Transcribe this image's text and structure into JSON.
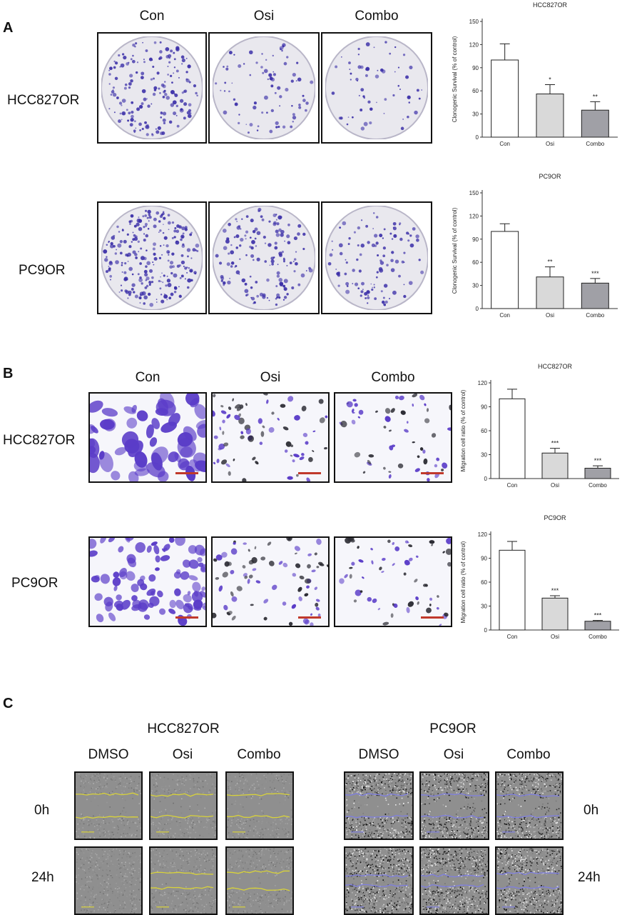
{
  "panels": {
    "A": {
      "letter": "A",
      "columns": [
        "Con",
        "Osi",
        "Combo"
      ],
      "rows": [
        "HCC827OR",
        "PC9OR"
      ]
    },
    "B": {
      "letter": "B",
      "columns": [
        "Con",
        "Osi",
        "Combo"
      ],
      "rows": [
        "HCC827OR",
        "PC9OR"
      ]
    },
    "C": {
      "letter": "C",
      "groups": [
        {
          "title": "HCC827OR",
          "columns": [
            "DMSO",
            "Osi",
            "Combo"
          ],
          "line_color": "#d8d23a"
        },
        {
          "title": "PC9OR",
          "columns": [
            "DMSO",
            "Osi",
            "Combo"
          ],
          "line_color": "#7f7fe0"
        }
      ],
      "time_left": [
        "0h",
        "24h"
      ],
      "time_right": [
        "0h",
        "24h"
      ]
    }
  },
  "colors": {
    "stain": "#3b2fa8",
    "bar_con": "#ffffff",
    "bar_osi": "#d9d9d9",
    "bar_combo": "#a0a0a6"
  },
  "chart_data": [
    {
      "type": "bar",
      "title": "HCC827OR",
      "ylabel": "Clonogenic Survival (% of control)",
      "categories": [
        "Con",
        "Osi",
        "Combo"
      ],
      "values": [
        100,
        56,
        35
      ],
      "errors": [
        21,
        12,
        11
      ],
      "significance": [
        "",
        "*",
        "**"
      ],
      "ylim": [
        0,
        150
      ],
      "yticks": [
        0,
        30,
        60,
        90,
        120,
        150
      ]
    },
    {
      "type": "bar",
      "title": "PC9OR",
      "ylabel": "Clonogenic Survival (% of control)",
      "categories": [
        "Con",
        "Osi",
        "Combo"
      ],
      "values": [
        100,
        41,
        33
      ],
      "errors": [
        10,
        13,
        6
      ],
      "significance": [
        "",
        "**",
        "***"
      ],
      "ylim": [
        0,
        150
      ],
      "yticks": [
        0,
        30,
        60,
        90,
        120,
        150
      ]
    },
    {
      "type": "bar",
      "title": "HCC827OR",
      "ylabel": "Migration cell ratio (% of control)",
      "categories": [
        "Con",
        "Osi",
        "Combo"
      ],
      "values": [
        100,
        32,
        13
      ],
      "errors": [
        12,
        6,
        3
      ],
      "significance": [
        "",
        "***",
        "***"
      ],
      "ylim": [
        0,
        120
      ],
      "yticks": [
        0,
        30,
        60,
        90,
        120
      ]
    },
    {
      "type": "bar",
      "title": "PC9OR",
      "ylabel": "Migration cell ratio (% of control)",
      "categories": [
        "Con",
        "Osi",
        "Combo"
      ],
      "values": [
        100,
        40,
        11
      ],
      "errors": [
        11,
        3,
        1
      ],
      "significance": [
        "",
        "***",
        "***"
      ],
      "ylim": [
        0,
        120
      ],
      "yticks": [
        0,
        30,
        60,
        90,
        120
      ]
    }
  ]
}
